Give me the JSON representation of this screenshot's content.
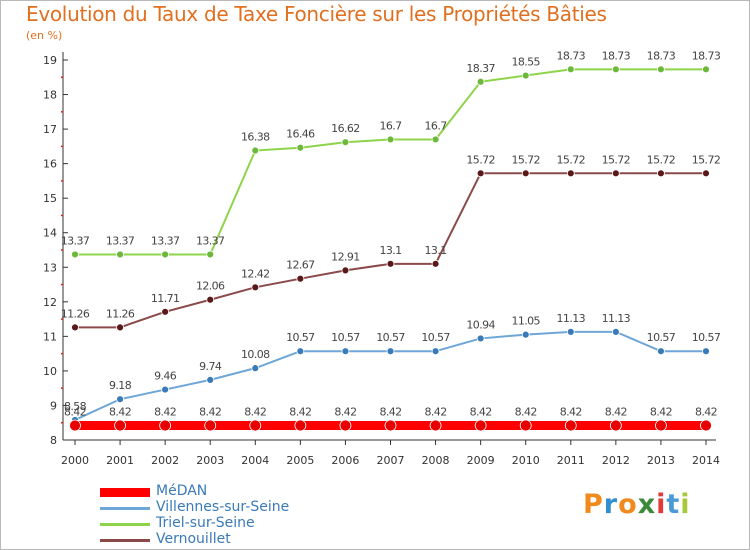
{
  "title": "Evolution du Taux de Taxe Foncière sur les Propriétés Bâties",
  "subtitle": "(en %)",
  "logo": {
    "text": "Proxiti",
    "letters": [
      "P",
      "r",
      "o",
      "x",
      "i",
      "t",
      "i"
    ],
    "colors": [
      "#f08a1c",
      "#2f8fd0",
      "#f08a1c",
      "#3a8a3a",
      "#e23a3a",
      "#4a9ad8",
      "#a8c83a"
    ]
  },
  "chart_data": {
    "type": "line",
    "title": "Evolution du Taux de Taxe Foncière sur les Propriétés Bâties",
    "ylabel": "(en %)",
    "xlabel": "",
    "x": [
      "2000",
      "2001",
      "2002",
      "2003",
      "2004",
      "2005",
      "2006",
      "2007",
      "2008",
      "2009",
      "2010",
      "2011",
      "2012",
      "2013",
      "2014"
    ],
    "ylim": [
      8,
      19
    ],
    "yticks": [
      8,
      9,
      10,
      11,
      12,
      13,
      14,
      15,
      16,
      17,
      18,
      19
    ],
    "grid": false,
    "legend_position": "bottom-left",
    "series": [
      {
        "name": "Triel-sur-Seine",
        "color": "#8ed44a",
        "marker": "#6cb83a",
        "width": 2,
        "values": [
          13.37,
          13.37,
          13.37,
          13.37,
          16.38,
          16.46,
          16.62,
          16.7,
          16.7,
          18.37,
          18.55,
          18.73,
          18.73,
          18.73,
          18.73
        ],
        "labels": [
          "13.37",
          "13.37",
          "13.37",
          "13.37",
          "16.38",
          "16.46",
          "16.62",
          "16.7",
          "16.7",
          "18.37",
          "18.55",
          "18.73",
          "18.73",
          "18.73",
          "18.73"
        ]
      },
      {
        "name": "Vernouillet",
        "color": "#8b4a4a",
        "marker": "#5a1818",
        "width": 2,
        "values": [
          11.26,
          11.26,
          11.71,
          12.06,
          12.42,
          12.67,
          12.91,
          13.1,
          13.1,
          15.72,
          15.72,
          15.72,
          15.72,
          15.72,
          15.72
        ],
        "labels": [
          "11.26",
          "11.26",
          "11.71",
          "12.06",
          "12.42",
          "12.67",
          "12.91",
          "13.1",
          "13.1",
          "15.72",
          "15.72",
          "15.72",
          "15.72",
          "15.72",
          "15.72"
        ]
      },
      {
        "name": "Villennes-sur-Seine",
        "color": "#6ea6d8",
        "marker": "#3a7ab8",
        "width": 2,
        "values": [
          8.58,
          9.18,
          9.46,
          9.74,
          10.08,
          10.57,
          10.57,
          10.57,
          10.57,
          10.94,
          11.05,
          11.13,
          11.13,
          10.57,
          10.57
        ],
        "labels": [
          "8.58",
          "9.18",
          "9.46",
          "9.74",
          "10.08",
          "10.57",
          "10.57",
          "10.57",
          "10.57",
          "10.94",
          "11.05",
          "11.13",
          "11.13",
          "10.57",
          "10.57"
        ]
      },
      {
        "name": "MéDAN",
        "color": "#ff0000",
        "marker": "#e80000",
        "width": 9,
        "values": [
          8.42,
          8.42,
          8.42,
          8.42,
          8.42,
          8.42,
          8.42,
          8.42,
          8.42,
          8.42,
          8.42,
          8.42,
          8.42,
          8.42,
          8.42
        ],
        "labels": [
          "8.42",
          "8.42",
          "8.42",
          "8.42",
          "8.42",
          "8.42",
          "8.42",
          "8.42",
          "8.42",
          "8.42",
          "8.42",
          "8.42",
          "8.42",
          "8.42",
          "8.42"
        ]
      }
    ],
    "legend": [
      {
        "name": "MéDAN",
        "color": "#ff0000",
        "text_color": "#3a7ab8",
        "thick": true
      },
      {
        "name": "Villennes-sur-Seine",
        "color": "#6ea6d8",
        "text_color": "#3a7ab8",
        "thick": false
      },
      {
        "name": "Triel-sur-Seine",
        "color": "#8ed44a",
        "text_color": "#3a7ab8",
        "thick": false
      },
      {
        "name": "Vernouillet",
        "color": "#8b4a4a",
        "text_color": "#3a7ab8",
        "thick": false
      }
    ]
  }
}
